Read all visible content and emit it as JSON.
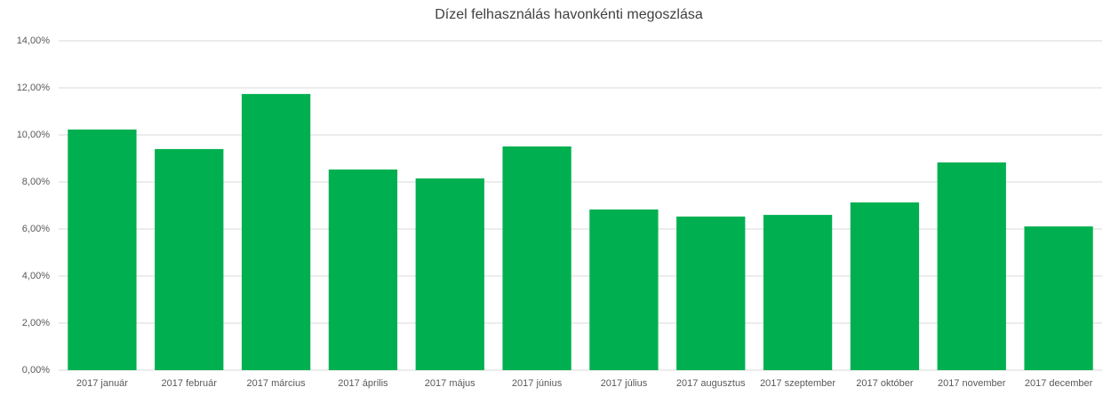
{
  "chart_data": {
    "type": "bar",
    "title": "Dízel felhasználás havonkénti megoszlása",
    "categories": [
      "2017 január",
      "2017 február",
      "2017 március",
      "2017 április",
      "2017 május",
      "2017 június",
      "2017 július",
      "2017 augusztus",
      "2017 szeptember",
      "2017 október",
      "2017 november",
      "2017 december"
    ],
    "values": [
      10.23,
      9.4,
      11.74,
      8.53,
      8.15,
      9.51,
      6.83,
      6.53,
      6.6,
      7.13,
      8.83,
      6.11
    ],
    "color": "#00b050",
    "ylim": [
      0,
      14
    ],
    "yticks": [
      {
        "value": 0,
        "label": "0,00%"
      },
      {
        "value": 2,
        "label": "2,00%"
      },
      {
        "value": 4,
        "label": "4,00%"
      },
      {
        "value": 6,
        "label": "6,00%"
      },
      {
        "value": 8,
        "label": "8,00%"
      },
      {
        "value": 10,
        "label": "10,00%"
      },
      {
        "value": 12,
        "label": "12,00%"
      },
      {
        "value": 14,
        "label": "14,00%"
      }
    ],
    "grid": true
  }
}
